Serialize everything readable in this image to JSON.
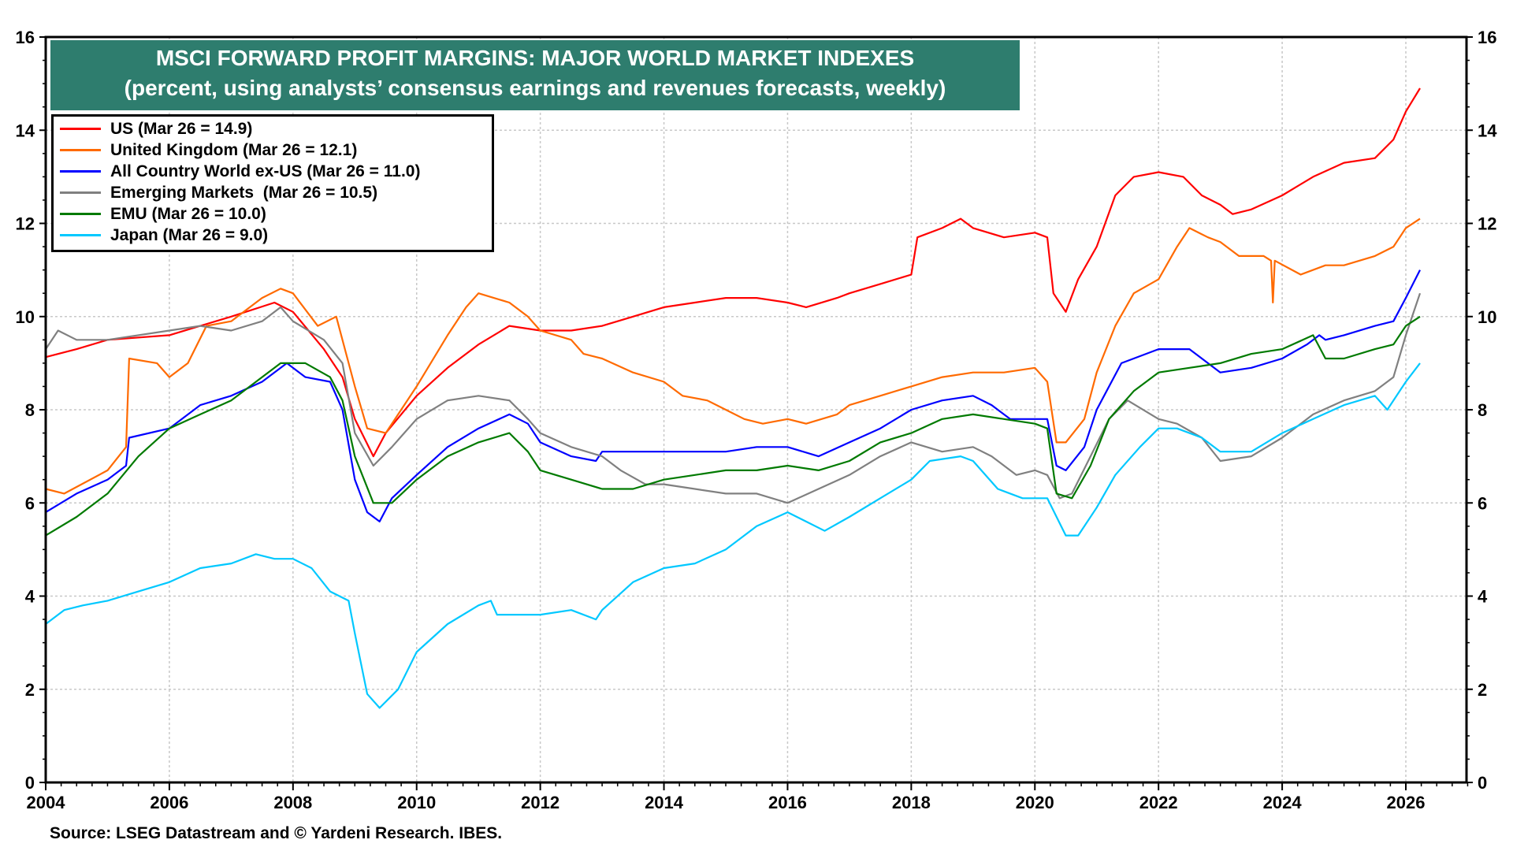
{
  "chart_data": {
    "type": "line",
    "title": "MSCI FORWARD PROFIT MARGINS: MAJOR WORLD MARKET INDEXES",
    "subtitle": "(percent, using analysts’ consensus earnings and revenues forecasts, weekly)",
    "source": "Source: LSEG Datastream and © Yardeni Research. IBES.",
    "xlim": [
      2004,
      2027
    ],
    "ylim": [
      0,
      16
    ],
    "x_ticks": [
      "2004",
      "2006",
      "2008",
      "2010",
      "2012",
      "2014",
      "2016",
      "2018",
      "2020",
      "2022",
      "2024",
      "2026"
    ],
    "y_ticks": [
      "0",
      "2",
      "4",
      "6",
      "8",
      "10",
      "12",
      "14",
      "16"
    ],
    "grid": true,
    "legend_placement": "top-left",
    "series": [
      {
        "name": "US (Mar 26 = 14.9)",
        "color": "#ff0000",
        "x": [
          2004,
          2004.5,
          2005,
          2006,
          2006.5,
          2007,
          2007.7,
          2008,
          2008.5,
          2008.8,
          2009,
          2009.3,
          2009.5,
          2010,
          2010.5,
          2011,
          2011.5,
          2012,
          2012.5,
          2013,
          2013.5,
          2014,
          2014.5,
          2015,
          2015.5,
          2016,
          2016.3,
          2016.8,
          2017,
          2017.5,
          2018,
          2018.1,
          2018.5,
          2018.8,
          2019,
          2019.5,
          2020,
          2020.2,
          2020.3,
          2020.5,
          2020.7,
          2021,
          2021.3,
          2021.6,
          2022,
          2022.4,
          2022.7,
          2023,
          2023.2,
          2023.5,
          2024,
          2024.5,
          2025,
          2025.5,
          2025.8,
          2026,
          2026.23
        ],
        "y": [
          9.13,
          9.3,
          9.5,
          9.6,
          9.8,
          10.0,
          10.3,
          10.1,
          9.3,
          8.7,
          7.8,
          7.0,
          7.5,
          8.3,
          8.9,
          9.4,
          9.8,
          9.7,
          9.7,
          9.8,
          10.0,
          10.2,
          10.3,
          10.4,
          10.4,
          10.3,
          10.2,
          10.4,
          10.5,
          10.7,
          10.9,
          11.7,
          11.9,
          12.1,
          11.9,
          11.7,
          11.8,
          11.7,
          10.5,
          10.1,
          10.8,
          11.5,
          12.6,
          13.0,
          13.1,
          13.0,
          12.6,
          12.4,
          12.2,
          12.3,
          12.6,
          13.0,
          13.3,
          13.4,
          13.8,
          14.4,
          14.9
        ]
      },
      {
        "name": "United Kingdom (Mar 26 = 12.1)",
        "color": "#ff6a00",
        "x": [
          2004,
          2004.3,
          2005,
          2005.3,
          2005.35,
          2005.8,
          2006,
          2006.3,
          2006.6,
          2007,
          2007.5,
          2007.8,
          2008,
          2008.4,
          2008.7,
          2009,
          2009.2,
          2009.5,
          2010,
          2010.5,
          2010.8,
          2011,
          2011.5,
          2011.8,
          2012,
          2012.5,
          2012.7,
          2013,
          2013.5,
          2014,
          2014.3,
          2014.7,
          2015,
          2015.3,
          2015.6,
          2016,
          2016.3,
          2016.8,
          2017,
          2017.5,
          2018,
          2018.5,
          2019,
          2019.5,
          2020,
          2020.2,
          2020.35,
          2020.5,
          2020.8,
          2021,
          2021.3,
          2021.6,
          2022,
          2022.3,
          2022.5,
          2022.8,
          2023,
          2023.3,
          2023.7,
          2023.82,
          2023.85,
          2023.88,
          2024.3,
          2024.7,
          2025,
          2025.5,
          2025.8,
          2026,
          2026.23
        ],
        "y": [
          6.3,
          6.2,
          6.7,
          7.2,
          9.1,
          9.0,
          8.7,
          9.0,
          9.8,
          9.9,
          10.4,
          10.6,
          10.5,
          9.8,
          10.0,
          8.5,
          7.6,
          7.5,
          8.5,
          9.6,
          10.2,
          10.5,
          10.3,
          10.0,
          9.7,
          9.5,
          9.2,
          9.1,
          8.8,
          8.6,
          8.3,
          8.2,
          8.0,
          7.8,
          7.7,
          7.8,
          7.7,
          7.9,
          8.1,
          8.3,
          8.5,
          8.7,
          8.8,
          8.8,
          8.9,
          8.6,
          7.3,
          7.3,
          7.8,
          8.8,
          9.8,
          10.5,
          10.8,
          11.5,
          11.9,
          11.7,
          11.6,
          11.3,
          11.3,
          11.2,
          10.3,
          11.2,
          10.9,
          11.1,
          11.1,
          11.3,
          11.5,
          11.9,
          12.1
        ]
      },
      {
        "name": "All Country World ex-US (Mar 26 = 11.0)",
        "color": "#0000ff",
        "x": [
          2004,
          2004.5,
          2005,
          2005.3,
          2005.35,
          2006,
          2006.5,
          2007,
          2007.5,
          2007.9,
          2008.2,
          2008.6,
          2008.8,
          2009,
          2009.2,
          2009.4,
          2009.6,
          2010,
          2010.5,
          2011,
          2011.5,
          2011.8,
          2012,
          2012.5,
          2012.9,
          2013,
          2014,
          2015,
          2015.5,
          2016,
          2016.5,
          2017,
          2017.5,
          2018,
          2018.5,
          2019,
          2019.3,
          2019.6,
          2020,
          2020.2,
          2020.35,
          2020.5,
          2020.8,
          2021,
          2021.4,
          2022,
          2022.5,
          2022.8,
          2023,
          2023.5,
          2024,
          2024.4,
          2024.6,
          2024.7,
          2025,
          2025.5,
          2025.8,
          2026,
          2026.23
        ],
        "y": [
          5.8,
          6.2,
          6.5,
          6.8,
          7.4,
          7.6,
          8.1,
          8.3,
          8.6,
          9.0,
          8.7,
          8.6,
          8.0,
          6.5,
          5.8,
          5.6,
          6.1,
          6.6,
          7.2,
          7.6,
          7.9,
          7.7,
          7.3,
          7.0,
          6.9,
          7.1,
          7.1,
          7.1,
          7.2,
          7.2,
          7.0,
          7.3,
          7.6,
          8.0,
          8.2,
          8.3,
          8.1,
          7.8,
          7.8,
          7.8,
          6.8,
          6.7,
          7.2,
          8.0,
          9.0,
          9.3,
          9.3,
          9.0,
          8.8,
          8.9,
          9.1,
          9.4,
          9.6,
          9.5,
          9.6,
          9.8,
          9.9,
          10.4,
          11.0
        ]
      },
      {
        "name": "Emerging Markets  (Mar 26 = 10.5)",
        "color": "#808080",
        "x": [
          2004,
          2004.2,
          2004.5,
          2005,
          2006,
          2006.5,
          2007,
          2007.5,
          2007.8,
          2008,
          2008.5,
          2008.8,
          2009,
          2009.3,
          2009.6,
          2010,
          2010.5,
          2011,
          2011.5,
          2011.8,
          2012,
          2012.5,
          2013,
          2013.3,
          2013.7,
          2014,
          2014.5,
          2015,
          2015.5,
          2016,
          2016.5,
          2017,
          2017.5,
          2018,
          2018.5,
          2019,
          2019.3,
          2019.7,
          2020,
          2020.2,
          2020.4,
          2020.6,
          2020.9,
          2021.2,
          2021.5,
          2022,
          2022.3,
          2022.7,
          2023,
          2023.5,
          2024,
          2024.5,
          2025,
          2025.5,
          2025.8,
          2026,
          2026.23
        ],
        "y": [
          9.3,
          9.7,
          9.5,
          9.5,
          9.7,
          9.8,
          9.7,
          9.9,
          10.2,
          9.9,
          9.5,
          9.0,
          7.5,
          6.8,
          7.2,
          7.8,
          8.2,
          8.3,
          8.2,
          7.8,
          7.5,
          7.2,
          7.0,
          6.7,
          6.4,
          6.4,
          6.3,
          6.2,
          6.2,
          6.0,
          6.3,
          6.6,
          7.0,
          7.3,
          7.1,
          7.2,
          7.0,
          6.6,
          6.7,
          6.6,
          6.1,
          6.2,
          7.0,
          7.8,
          8.2,
          7.8,
          7.7,
          7.4,
          6.9,
          7.0,
          7.4,
          7.9,
          8.2,
          8.4,
          8.7,
          9.6,
          10.5
        ]
      },
      {
        "name": "EMU (Mar 26 = 10.0)",
        "color": "#007a00",
        "x": [
          2004,
          2004.5,
          2005,
          2005.5,
          2006,
          2006.5,
          2007,
          2007.5,
          2007.8,
          2008.2,
          2008.6,
          2008.8,
          2009,
          2009.3,
          2009.6,
          2010,
          2010.5,
          2011,
          2011.5,
          2011.8,
          2012,
          2012.5,
          2013,
          2013.5,
          2014,
          2014.5,
          2015,
          2015.5,
          2016,
          2016.5,
          2017,
          2017.5,
          2018,
          2018.5,
          2019,
          2019.5,
          2020,
          2020.2,
          2020.35,
          2020.6,
          2020.9,
          2021.2,
          2021.6,
          2022,
          2022.5,
          2023,
          2023.5,
          2024,
          2024.5,
          2024.7,
          2025,
          2025.5,
          2025.8,
          2026,
          2026.23
        ],
        "y": [
          5.3,
          5.7,
          6.2,
          7.0,
          7.6,
          7.9,
          8.2,
          8.7,
          9.0,
          9.0,
          8.7,
          8.2,
          7.0,
          6.0,
          6.0,
          6.5,
          7.0,
          7.3,
          7.5,
          7.1,
          6.7,
          6.5,
          6.3,
          6.3,
          6.5,
          6.6,
          6.7,
          6.7,
          6.8,
          6.7,
          6.9,
          7.3,
          7.5,
          7.8,
          7.9,
          7.8,
          7.7,
          7.6,
          6.2,
          6.1,
          6.8,
          7.8,
          8.4,
          8.8,
          8.9,
          9.0,
          9.2,
          9.3,
          9.6,
          9.1,
          9.1,
          9.3,
          9.4,
          9.8,
          10.0
        ]
      },
      {
        "name": "Japan (Mar 26 = 9.0)",
        "color": "#00c8ff",
        "x": [
          2004,
          2004.3,
          2004.6,
          2005,
          2005.5,
          2006,
          2006.5,
          2007,
          2007.4,
          2007.7,
          2008,
          2008.3,
          2008.6,
          2008.9,
          2009,
          2009.2,
          2009.4,
          2009.7,
          2010,
          2010.5,
          2011,
          2011.2,
          2011.3,
          2012,
          2012.5,
          2012.9,
          2013,
          2013.5,
          2014,
          2014.5,
          2015,
          2015.5,
          2016,
          2016.3,
          2016.6,
          2017,
          2017.5,
          2018,
          2018.3,
          2018.8,
          2019,
          2019.4,
          2019.8,
          2020.2,
          2020.5,
          2020.7,
          2021,
          2021.3,
          2021.7,
          2022,
          2022.3,
          2022.7,
          2023,
          2023.5,
          2024,
          2024.5,
          2025,
          2025.5,
          2025.7,
          2026,
          2026.23
        ],
        "y": [
          3.4,
          3.7,
          3.8,
          3.9,
          4.1,
          4.3,
          4.6,
          4.7,
          4.9,
          4.8,
          4.8,
          4.6,
          4.1,
          3.9,
          3.2,
          1.9,
          1.6,
          2.0,
          2.8,
          3.4,
          3.8,
          3.9,
          3.6,
          3.6,
          3.7,
          3.5,
          3.7,
          4.3,
          4.6,
          4.7,
          5.0,
          5.5,
          5.8,
          5.6,
          5.4,
          5.7,
          6.1,
          6.5,
          6.9,
          7.0,
          6.9,
          6.3,
          6.1,
          6.1,
          5.3,
          5.3,
          5.9,
          6.6,
          7.2,
          7.6,
          7.6,
          7.4,
          7.1,
          7.1,
          7.5,
          7.8,
          8.1,
          8.3,
          8.0,
          8.6,
          9.0
        ]
      }
    ]
  }
}
